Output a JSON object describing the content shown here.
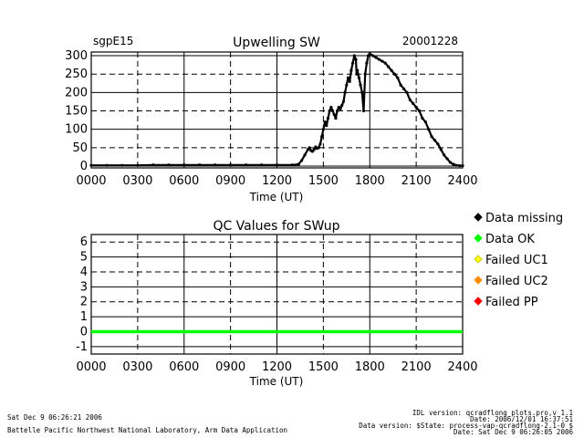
{
  "chart_data": [
    {
      "type": "scatter",
      "site": "sgpE15",
      "title": "Upwelling SW",
      "date": "20001228",
      "xlabel": "Time (UT)",
      "xlim": [
        0,
        2400
      ],
      "x_ticks": [
        "0000",
        "0300",
        "0600",
        "0900",
        "1200",
        "1500",
        "1800",
        "2100",
        "2400"
      ],
      "ylim": [
        -5,
        310
      ],
      "y_ticks": [
        "0",
        "50",
        "100",
        "150",
        "200",
        "250",
        "300"
      ],
      "grid": true,
      "series": [
        {
          "name": "Data missing",
          "color": "#000000",
          "x": [
            0,
            100,
            200,
            300,
            400,
            500,
            600,
            700,
            800,
            900,
            1000,
            1100,
            1200,
            1300,
            1340,
            1360,
            1380,
            1400,
            1410,
            1420,
            1430,
            1440,
            1450,
            1460,
            1470,
            1480,
            1490,
            1500,
            1510,
            1520,
            1530,
            1540,
            1550,
            1560,
            1570,
            1580,
            1590,
            1600,
            1610,
            1620,
            1630,
            1640,
            1650,
            1660,
            1670,
            1680,
            1690,
            1700,
            1710,
            1715,
            1720,
            1730,
            1740,
            1750,
            1760,
            1770,
            1780,
            1790,
            1800,
            1820,
            1840,
            1860,
            1880,
            1900,
            1920,
            1940,
            1960,
            1980,
            2000,
            2020,
            2040,
            2060,
            2080,
            2100,
            2120,
            2140,
            2160,
            2180,
            2200,
            2220,
            2240,
            2260,
            2280,
            2300,
            2320,
            2340,
            2360,
            2380,
            2400
          ],
          "y": [
            2,
            2,
            2,
            2,
            3,
            3,
            3,
            3,
            3,
            3,
            3,
            3,
            3,
            3,
            5,
            15,
            30,
            45,
            50,
            42,
            40,
            45,
            52,
            48,
            50,
            60,
            80,
            100,
            120,
            110,
            130,
            150,
            160,
            150,
            140,
            130,
            150,
            160,
            155,
            165,
            175,
            200,
            220,
            240,
            230,
            260,
            280,
            300,
            290,
            250,
            260,
            240,
            220,
            200,
            150,
            250,
            280,
            300,
            305,
            300,
            295,
            290,
            285,
            280,
            270,
            260,
            250,
            240,
            220,
            210,
            200,
            180,
            170,
            160,
            150,
            130,
            120,
            100,
            80,
            70,
            60,
            45,
            30,
            20,
            10,
            5,
            2,
            1,
            1
          ]
        }
      ]
    },
    {
      "type": "scatter",
      "title": "QC Values for SWup",
      "xlabel": "Time (UT)",
      "xlim": [
        0,
        2400
      ],
      "x_ticks": [
        "0000",
        "0300",
        "0600",
        "0900",
        "1200",
        "1500",
        "1800",
        "2100",
        "2400"
      ],
      "ylim": [
        -1.5,
        6.5
      ],
      "y_ticks": [
        "-1",
        "0",
        "1",
        "2",
        "3",
        "4",
        "5",
        "6"
      ],
      "grid": true,
      "series": [
        {
          "name": "Data OK",
          "color": "#00ff00",
          "x": [
            0,
            2400
          ],
          "y": [
            0,
            0
          ]
        }
      ]
    }
  ],
  "legend": [
    {
      "label": "Data missing",
      "color": "#000000"
    },
    {
      "label": "Data OK",
      "color": "#00ff00"
    },
    {
      "label": "Failed UC1",
      "color": "#ffff00"
    },
    {
      "label": "Failed UC2",
      "color": "#ff8c00"
    },
    {
      "label": "Failed PP",
      "color": "#ff0000"
    }
  ],
  "footer": {
    "left_date": "Sat Dec  9 06:26:21 2006",
    "left_org": "Battelle Pacific Northwest National Laboratory, Arm Data Application",
    "right_line1": "IDL version: qcradflong_plots.pro,v 1.1",
    "right_line2": "Date: 2006/12/01 16:37:51",
    "right_line3": "Data version: $State: process-vap-qcradflong-2.1-0 $",
    "right_line4": "Date: Sat Dec  9 06:26:05 2006"
  }
}
